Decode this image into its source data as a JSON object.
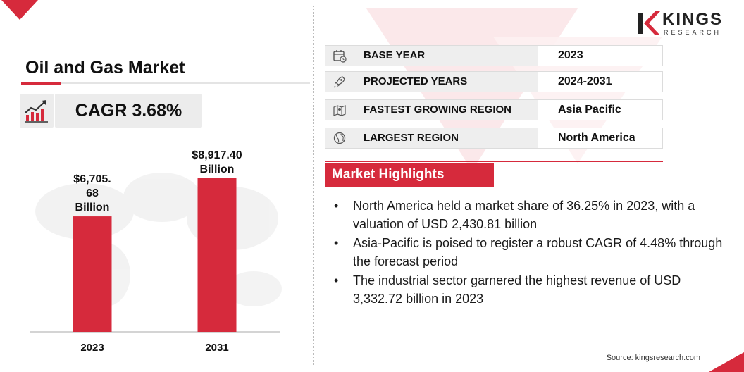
{
  "title": "Oil and Gas Market",
  "cagr": "CAGR 3.68%",
  "info_rows": [
    {
      "label": "BASE YEAR",
      "value": "2023",
      "icon": "calendar-clock-icon"
    },
    {
      "label": "PROJECTED YEARS",
      "value": "2024-2031",
      "icon": "rocket-icon"
    },
    {
      "label": "FASTEST GROWING REGION",
      "value": "Asia Pacific",
      "icon": "region-map-icon"
    },
    {
      "label": "LARGEST REGION",
      "value": "North America",
      "icon": "globe-icon"
    }
  ],
  "highlights": {
    "header": "Market Highlights",
    "items": [
      "North America held a market share of 36.25% in 2023, with a valuation of USD 2,430.81 billion",
      "Asia-Pacific is poised to register a robust CAGR of 4.48% through the forecast period",
      "The industrial sector garnered the highest revenue of USD 3,332.72 billion in 2023"
    ]
  },
  "source": "Source: kingsresearch.com",
  "logo": {
    "name": "KINGS",
    "sub": "RESEARCH"
  },
  "colors": {
    "accent": "#d62a3c",
    "panel": "#ececec"
  },
  "chart_data": {
    "type": "bar",
    "categories": [
      "2023",
      "2031"
    ],
    "values": [
      6705.68,
      8917.4
    ],
    "data_labels": [
      [
        "$6,705.",
        "68",
        "Billion"
      ],
      [
        "$8,917.40",
        "Billion"
      ]
    ],
    "title": "",
    "xlabel": "",
    "ylabel": "",
    "ylim": [
      0,
      9500
    ],
    "grid": false,
    "legend": "none",
    "bar_color": "#d62a3c"
  }
}
